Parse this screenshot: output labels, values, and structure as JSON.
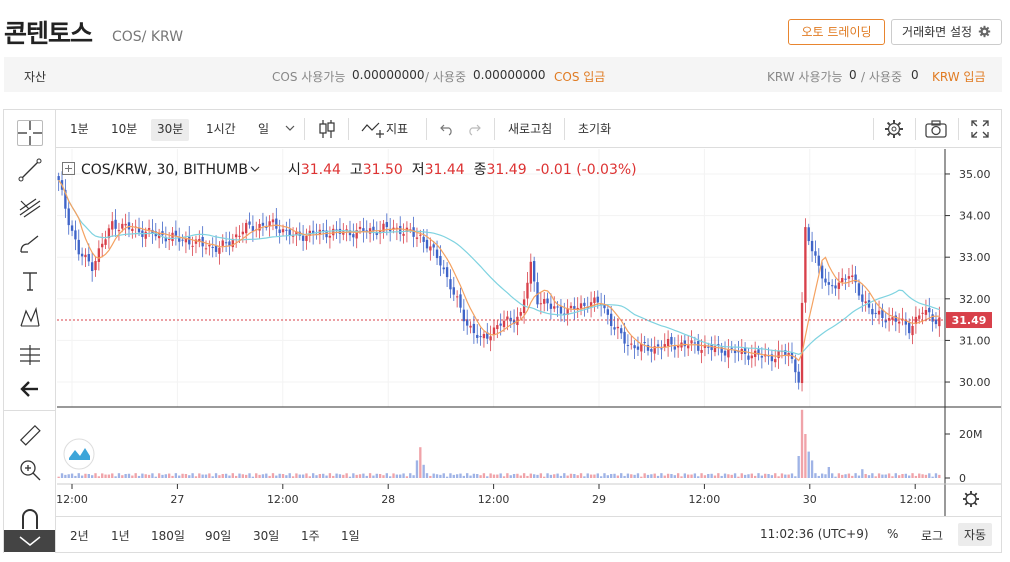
{
  "header": {
    "title": "콘텐토스",
    "pair": "COS/ KRW",
    "auto_trading_label": "오토 트레이딩",
    "settings_label": "거래화면 설정"
  },
  "assets": {
    "label": "자산",
    "cos_avail_label": "COS 사용가능",
    "cos_avail_value": "0.00000000",
    "sep1": "/ 사용중",
    "cos_used_value": "0.00000000",
    "cos_deposit": "COS 입금",
    "krw_avail_label": "KRW 사용가능",
    "krw_avail_value": "0",
    "sep2": "/ 사용중",
    "krw_used_value": "0",
    "krw_deposit": "KRW 입금"
  },
  "toolbar": {
    "intervals": [
      "1분",
      "10분",
      "30분",
      "1시간",
      "일"
    ],
    "selected_interval": "30분",
    "indicators_label": "지표",
    "refresh_label": "새로고침",
    "reset_label": "초기화"
  },
  "legend": {
    "symbol": "COS/KRW, 30, BITHUMB",
    "open_label": "시",
    "open": "31.44",
    "high_label": "고",
    "high": "31.50",
    "low_label": "저",
    "low": "31.44",
    "close_label": "종",
    "close": "31.49",
    "change": "-0.01 (-0.03%)"
  },
  "bottom": {
    "ranges": [
      "2년",
      "1년",
      "180일",
      "90일",
      "30일",
      "1주",
      "1일"
    ],
    "time": "11:02:36 (UTC+9)",
    "percent_label": "%",
    "log_label": "로그",
    "auto_label": "자동"
  },
  "colors": {
    "up": "#d8404a",
    "down": "#3f64c8",
    "ma_short": "#f4a261",
    "ma_long": "#7fd3e0",
    "accent": "#e07b22"
  },
  "chart_data": {
    "type": "candlestick",
    "price_axis": {
      "ticks": [
        "35.00",
        "34.00",
        "33.00",
        "32.00",
        "31.00",
        "30.00"
      ],
      "range": [
        29.4,
        35.6
      ]
    },
    "volume_axis": {
      "ticks": [
        "20M",
        "0"
      ]
    },
    "time_axis": [
      "12:00",
      "27",
      "12:00",
      "28",
      "12:00",
      "29",
      "12:00",
      "30",
      "12:00"
    ],
    "last_price_label": "31.49",
    "last_price": 31.49,
    "anchors": [
      [
        0,
        34.8
      ],
      [
        3,
        33.9
      ],
      [
        6,
        33.1
      ],
      [
        10,
        32.8
      ],
      [
        16,
        33.8
      ],
      [
        26,
        33.6
      ],
      [
        38,
        33.4
      ],
      [
        48,
        33.2
      ],
      [
        56,
        33.7
      ],
      [
        64,
        33.8
      ],
      [
        70,
        33.5
      ],
      [
        80,
        33.6
      ],
      [
        88,
        33.6
      ],
      [
        100,
        33.7
      ],
      [
        108,
        33.5
      ],
      [
        114,
        32.9
      ],
      [
        118,
        32.1
      ],
      [
        122,
        31.4
      ],
      [
        126,
        31.0
      ],
      [
        132,
        31.4
      ],
      [
        138,
        31.6
      ],
      [
        141,
        32.8
      ],
      [
        143,
        32.0
      ],
      [
        147,
        31.8
      ],
      [
        152,
        31.7
      ],
      [
        158,
        31.9
      ],
      [
        162,
        31.9
      ],
      [
        166,
        31.3
      ],
      [
        170,
        30.9
      ],
      [
        176,
        30.8
      ],
      [
        182,
        30.9
      ],
      [
        188,
        30.9
      ],
      [
        196,
        30.8
      ],
      [
        204,
        30.7
      ],
      [
        212,
        30.6
      ],
      [
        218,
        30.7
      ],
      [
        221,
        30.1
      ],
      [
        223,
        33.6
      ],
      [
        226,
        33.0
      ],
      [
        230,
        32.2
      ],
      [
        236,
        32.6
      ],
      [
        240,
        32.0
      ],
      [
        244,
        31.6
      ],
      [
        250,
        31.5
      ],
      [
        254,
        31.3
      ],
      [
        258,
        31.7
      ],
      [
        262,
        31.5
      ]
    ],
    "volume_spikes": [
      [
        107,
        8
      ],
      [
        108,
        14
      ],
      [
        109,
        6
      ],
      [
        221,
        10
      ],
      [
        222,
        31
      ],
      [
        223,
        20
      ],
      [
        224,
        12
      ],
      [
        225,
        8
      ],
      [
        230,
        5
      ],
      [
        240,
        4
      ]
    ]
  }
}
